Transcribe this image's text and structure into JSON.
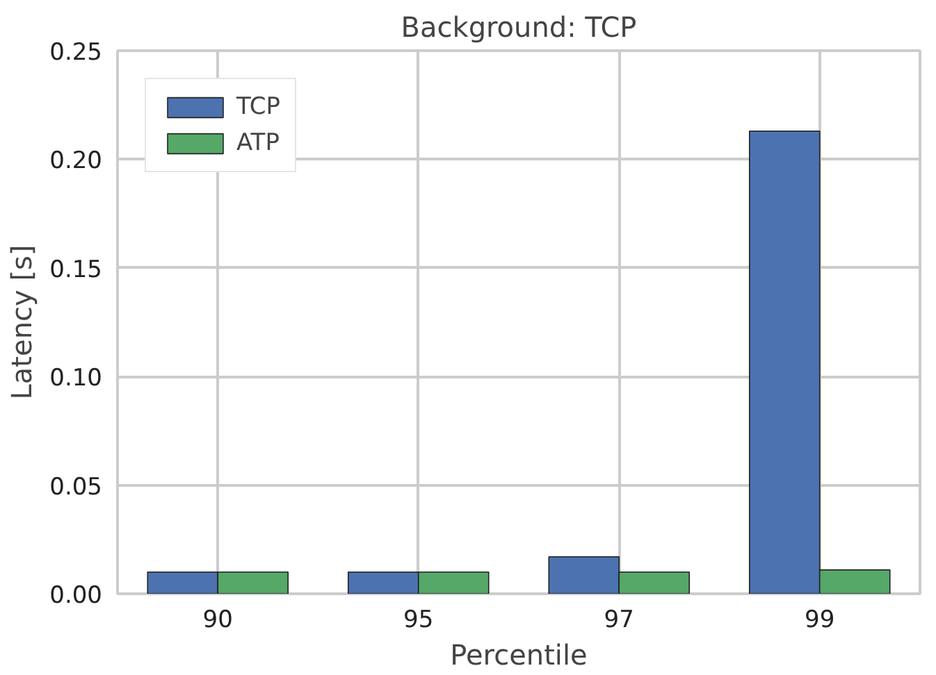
{
  "chart_data": {
    "type": "bar",
    "title": "Background: TCP",
    "xlabel": "Percentile",
    "ylabel": "Latency [s]",
    "categories": [
      "90",
      "95",
      "97",
      "99"
    ],
    "series": [
      {
        "name": "TCP",
        "color": "#4c72b0",
        "values": [
          0.01,
          0.01,
          0.017,
          0.213
        ]
      },
      {
        "name": "ATP",
        "color": "#55a868",
        "values": [
          0.01,
          0.01,
          0.01,
          0.011
        ]
      }
    ],
    "ylim": [
      0,
      0.25
    ],
    "yticks": [
      {
        "value": 0,
        "label": "0.00"
      },
      {
        "value": 0.05,
        "label": "0.05"
      },
      {
        "value": 0.1,
        "label": "0.10"
      },
      {
        "value": 0.15,
        "label": "0.15"
      },
      {
        "value": 0.2,
        "label": "0.20"
      },
      {
        "value": 0.25,
        "label": "0.25"
      }
    ],
    "grid": true,
    "legend": "top left"
  }
}
